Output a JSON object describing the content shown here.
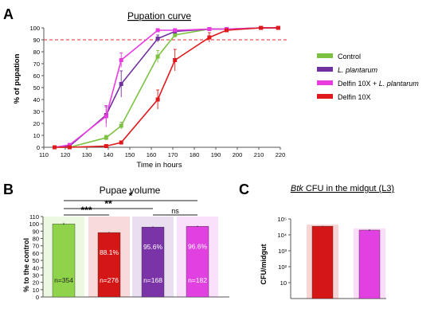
{
  "chart_data": [
    {
      "panel": "A",
      "type": "line",
      "title": "Pupation curve",
      "xlabel": "Time in hours",
      "ylabel": "% of pupation",
      "xlim": [
        110,
        220
      ],
      "ylim": [
        0,
        100
      ],
      "xticks": [
        110,
        120,
        130,
        140,
        150,
        160,
        170,
        180,
        190,
        200,
        210,
        220
      ],
      "yticks": [
        0,
        10,
        20,
        30,
        40,
        50,
        60,
        70,
        80,
        90,
        100
      ],
      "reference_line": 90,
      "grid": false,
      "legend_position": "right",
      "series": [
        {
          "name": "Control",
          "color": "#7cc242",
          "points": [
            [
              115,
              0,
              0
            ],
            [
              122,
              0,
              0
            ],
            [
              139,
              8,
              2
            ],
            [
              146,
              18,
              3
            ],
            [
              163,
              76,
              5
            ],
            [
              171,
              94,
              2
            ],
            [
              187,
              99,
              1
            ],
            [
              195,
              99,
              1
            ],
            [
              211,
              100,
              0
            ],
            [
              219,
              100,
              0
            ]
          ]
        },
        {
          "name": "L. plantarum",
          "italic": true,
          "color": "#7030a0",
          "points": [
            [
              115,
              0,
              0
            ],
            [
              122,
              1,
              1
            ],
            [
              139,
              27,
              7
            ],
            [
              146,
              53,
              11
            ],
            [
              163,
              91,
              3
            ],
            [
              171,
              97,
              1
            ],
            [
              187,
              99,
              1
            ],
            [
              195,
              99,
              1
            ],
            [
              211,
              100,
              0
            ],
            [
              219,
              100,
              0
            ]
          ]
        },
        {
          "name": "Delfin 10X + L. plantarum",
          "italic_part": "L. plantarum",
          "color": "#e83cdf",
          "points": [
            [
              115,
              0,
              0
            ],
            [
              122,
              2,
              1
            ],
            [
              139,
              26,
              9
            ],
            [
              146,
              73,
              6
            ],
            [
              163,
              98,
              1
            ],
            [
              171,
              98,
              1
            ],
            [
              187,
              99,
              1
            ],
            [
              195,
              99,
              1
            ],
            [
              211,
              100,
              0
            ],
            [
              219,
              100,
              0
            ]
          ]
        },
        {
          "name": "Delfin 10X",
          "color": "#e0181b",
          "points": [
            [
              115,
              0,
              0
            ],
            [
              122,
              0,
              0
            ],
            [
              139,
              1,
              1
            ],
            [
              146,
              4,
              1
            ],
            [
              163,
              40,
              8
            ],
            [
              171,
              73,
              9
            ],
            [
              187,
              92,
              4
            ],
            [
              195,
              98,
              1
            ],
            [
              211,
              100,
              0
            ],
            [
              219,
              100,
              0
            ]
          ]
        }
      ]
    },
    {
      "panel": "B",
      "type": "bar",
      "title": "Pupae volume",
      "ylabel": "% to the control",
      "ylim": [
        0,
        110
      ],
      "yticks": [
        0,
        10,
        20,
        30,
        40,
        50,
        60,
        70,
        80,
        90,
        100,
        110
      ],
      "bars": [
        {
          "value": 100,
          "err": 1.5,
          "color": "#8fd34a",
          "n": "n=354",
          "pct": ""
        },
        {
          "value": 88.1,
          "err": 1.0,
          "color": "#d41616",
          "n": "n=276",
          "pct": "88.1%"
        },
        {
          "value": 95.6,
          "err": 1.0,
          "color": "#7a34a8",
          "n": "n=168",
          "pct": "95.6%"
        },
        {
          "value": 96.6,
          "err": 1.0,
          "color": "#e041e0",
          "n": "n=182",
          "pct": "96.6%"
        }
      ],
      "significance": [
        {
          "from": 0,
          "to": 3,
          "label": "*"
        },
        {
          "from": 0,
          "to": 2,
          "label": "**"
        },
        {
          "from": 0,
          "to": 1,
          "label": "***"
        },
        {
          "from": 2,
          "to": 3,
          "label": "ns"
        }
      ]
    },
    {
      "panel": "C",
      "type": "bar",
      "title": "Btk CFU in the midgut (L3)",
      "title_italic_part": "Btk",
      "ylabel": "CFU/midgut",
      "yscale": "log",
      "ylim": [
        1,
        100000
      ],
      "yticks": [
        "10",
        "10²",
        "10³",
        "10⁴",
        "10⁵"
      ],
      "bars": [
        {
          "value": 35000,
          "err": 2000,
          "color": "#d41616"
        },
        {
          "value": 20000,
          "err": 2500,
          "color": "#e041e0"
        }
      ]
    }
  ]
}
